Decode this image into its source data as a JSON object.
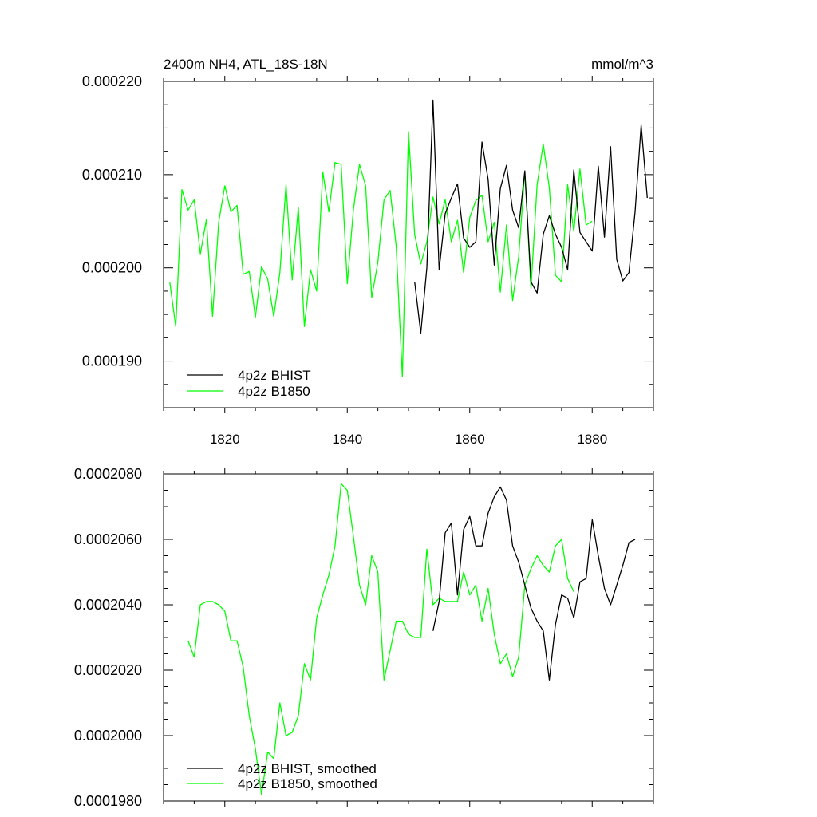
{
  "colors": {
    "bhist": "#000000",
    "b1850": "#00ff00",
    "frame": "#000000",
    "background": "#ffffff"
  },
  "chart_data": [
    {
      "type": "line",
      "title": "2400m NH4, ATL_18S-18N",
      "units": "mmol/m^3",
      "xlabel": "",
      "ylabel": "",
      "xlim": [
        1810,
        1890
      ],
      "ylim": [
        0.000185,
        0.00022
      ],
      "xticks": [
        1820,
        1840,
        1860,
        1880
      ],
      "xtick_labels": [
        "1820",
        "1840",
        "1860",
        "1880"
      ],
      "yticks": [
        0.00019,
        0.0002,
        0.00021,
        0.00022
      ],
      "ytick_labels": [
        "0.000190",
        "0.000200",
        "0.000210",
        "0.000220"
      ],
      "grid": false,
      "legend_position": "bottom-left",
      "series": [
        {
          "name": "4p2z BHIST",
          "color": "#000000",
          "x": [
            1851,
            1852,
            1853,
            1854,
            1855,
            1856,
            1857,
            1858,
            1859,
            1860,
            1861,
            1862,
            1863,
            1864,
            1865,
            1866,
            1867,
            1868,
            1869,
            1870,
            1871,
            1872,
            1873,
            1874,
            1875,
            1876,
            1877,
            1878,
            1879,
            1880,
            1881,
            1882,
            1883,
            1884,
            1885,
            1886,
            1887,
            1888,
            1889
          ],
          "y": [
            0.0001985,
            0.000193,
            0.0002,
            0.000218,
            0.0001998,
            0.0002058,
            0.0002075,
            0.000209,
            0.0002032,
            0.0002022,
            0.0002028,
            0.0002135,
            0.0002095,
            0.0002003,
            0.0002085,
            0.000211,
            0.0002062,
            0.0002043,
            0.0002104,
            0.0001985,
            0.0001973,
            0.0002036,
            0.0002056,
            0.0002036,
            0.0002022,
            0.0001998,
            0.0002105,
            0.0002038,
            0.0002028,
            0.0002018,
            0.0002109,
            0.0002033,
            0.000213,
            0.0002009,
            0.0001986,
            0.0001995,
            0.000206,
            0.0002153,
            0.0002075
          ]
        },
        {
          "name": "4p2z B1850",
          "color": "#00ff00",
          "x": [
            1811,
            1812,
            1813,
            1814,
            1815,
            1816,
            1817,
            1818,
            1819,
            1820,
            1821,
            1822,
            1823,
            1824,
            1825,
            1826,
            1827,
            1828,
            1829,
            1830,
            1831,
            1832,
            1833,
            1834,
            1835,
            1836,
            1837,
            1838,
            1839,
            1840,
            1841,
            1842,
            1843,
            1844,
            1845,
            1846,
            1847,
            1848,
            1849,
            1850,
            1851,
            1852,
            1853,
            1854,
            1855,
            1856,
            1857,
            1858,
            1859,
            1860,
            1861,
            1862,
            1863,
            1864,
            1865,
            1866,
            1867,
            1868,
            1869,
            1870,
            1871,
            1872,
            1873,
            1874,
            1875,
            1876,
            1877,
            1878,
            1879,
            1880
          ],
          "y": [
            0.0001985,
            0.0001937,
            0.0002084,
            0.0002062,
            0.0002073,
            0.0002015,
            0.0002052,
            0.0001948,
            0.0002049,
            0.0002088,
            0.000206,
            0.0002067,
            0.0001993,
            0.0001996,
            0.0001947,
            0.0002001,
            0.0001988,
            0.0001948,
            0.0001995,
            0.0002089,
            0.0001987,
            0.0002065,
            0.0001937,
            0.0001998,
            0.0001975,
            0.0002103,
            0.000206,
            0.0002113,
            0.0002111,
            0.0001983,
            0.0002062,
            0.0002111,
            0.0002088,
            0.0001968,
            0.0002006,
            0.0002073,
            0.0002083,
            0.0002023,
            0.0001883,
            0.0002146,
            0.0002036,
            0.0002004,
            0.0002028,
            0.0002076,
            0.0002047,
            0.0002073,
            0.0002028,
            0.0002051,
            0.0001995,
            0.0002054,
            0.0002072,
            0.0002078,
            0.0002028,
            0.0002049,
            0.0001974,
            0.0002046,
            0.0001965,
            0.0002012,
            0.0002103,
            0.0001978,
            0.0002089,
            0.0002133,
            0.0002086,
            0.0001992,
            0.0001985,
            0.0002089,
            0.0002039,
            0.0002106,
            0.0002046,
            0.000205
          ]
        }
      ]
    },
    {
      "type": "line",
      "title": "",
      "xlabel": "",
      "ylabel": "",
      "xlim": [
        1810,
        1890
      ],
      "ylim": [
        0.000198,
        0.000208
      ],
      "xticks": [
        1820,
        1840,
        1860,
        1880
      ],
      "xtick_labels": [],
      "yticks": [
        0.000198,
        0.0002,
        0.000202,
        0.000204,
        0.000206,
        0.000208
      ],
      "ytick_labels": [
        "0.0001980",
        "0.0002000",
        "0.0002020",
        "0.0002040",
        "0.0002060",
        "0.0002080"
      ],
      "grid": false,
      "legend_position": "bottom-left",
      "series": [
        {
          "name": "4p2z BHIST, smoothed",
          "color": "#000000",
          "x": [
            1854,
            1855,
            1856,
            1857,
            1858,
            1859,
            1860,
            1861,
            1862,
            1863,
            1864,
            1865,
            1866,
            1867,
            1868,
            1869,
            1870,
            1871,
            1872,
            1873,
            1874,
            1875,
            1876,
            1877,
            1878,
            1879,
            1880,
            1881,
            1882,
            1883,
            1884,
            1885,
            1886,
            1887
          ],
          "y": [
            0.0002032,
            0.0002041,
            0.0002062,
            0.0002065,
            0.0002043,
            0.0002063,
            0.0002067,
            0.0002058,
            0.0002058,
            0.0002068,
            0.0002073,
            0.0002076,
            0.0002072,
            0.0002058,
            0.0002053,
            0.0002046,
            0.0002039,
            0.0002035,
            0.0002032,
            0.0002017,
            0.0002034,
            0.0002043,
            0.0002042,
            0.0002036,
            0.0002047,
            0.0002048,
            0.0002066,
            0.0002055,
            0.0002045,
            0.000204,
            0.0002046,
            0.0002052,
            0.0002059,
            0.000206
          ]
        },
        {
          "name": "4p2z B1850, smoothed",
          "color": "#00ff00",
          "x": [
            1814,
            1815,
            1816,
            1817,
            1818,
            1819,
            1820,
            1821,
            1822,
            1823,
            1824,
            1825,
            1826,
            1827,
            1828,
            1829,
            1830,
            1831,
            1832,
            1833,
            1834,
            1835,
            1836,
            1837,
            1838,
            1839,
            1840,
            1841,
            1842,
            1843,
            1844,
            1845,
            1846,
            1847,
            1848,
            1849,
            1850,
            1851,
            1852,
            1853,
            1854,
            1855,
            1856,
            1857,
            1858,
            1859,
            1860,
            1861,
            1862,
            1863,
            1864,
            1865,
            1866,
            1867,
            1868,
            1869,
            1870,
            1871,
            1872,
            1873,
            1874,
            1875,
            1876,
            1877
          ],
          "y": [
            0.0002029,
            0.0002024,
            0.000204,
            0.0002041,
            0.0002041,
            0.000204,
            0.0002038,
            0.0002029,
            0.0002029,
            0.0002021,
            0.0002006,
            0.0001996,
            0.0001982,
            0.0001995,
            0.0001993,
            0.000201,
            0.0002,
            0.0002001,
            0.0002006,
            0.0002022,
            0.0002017,
            0.0002036,
            0.0002043,
            0.0002049,
            0.0002058,
            0.0002077,
            0.0002075,
            0.0002061,
            0.0002046,
            0.000204,
            0.0002055,
            0.000205,
            0.0002017,
            0.0002026,
            0.0002035,
            0.0002035,
            0.0002031,
            0.000203,
            0.000203,
            0.0002057,
            0.000204,
            0.0002042,
            0.0002041,
            0.0002041,
            0.0002041,
            0.000205,
            0.0002043,
            0.0002046,
            0.0002035,
            0.0002045,
            0.0002031,
            0.0002022,
            0.0002025,
            0.0002018,
            0.0002024,
            0.0002046,
            0.0002051,
            0.0002055,
            0.0002052,
            0.000205,
            0.0002058,
            0.000206,
            0.0002048,
            0.0002044
          ]
        }
      ]
    }
  ]
}
